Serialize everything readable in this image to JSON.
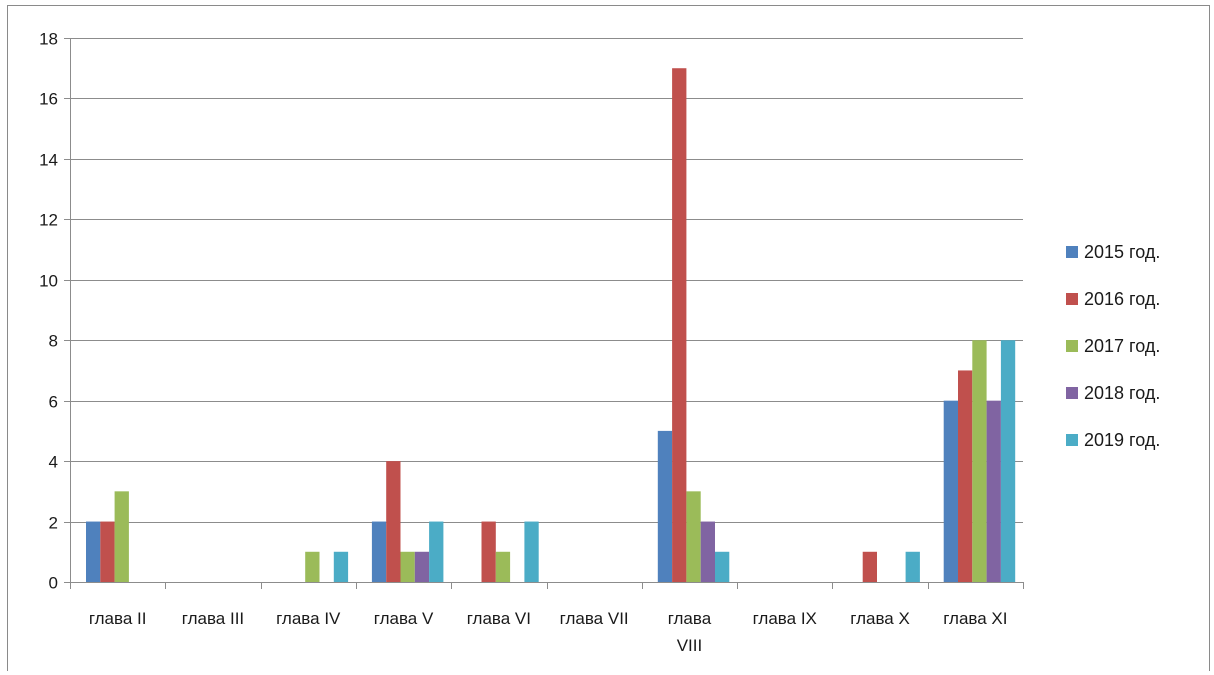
{
  "chart_data": {
    "type": "bar",
    "categories": [
      [
        "глава II"
      ],
      [
        "глава III"
      ],
      [
        "глава IV"
      ],
      [
        "глава V"
      ],
      [
        "глава VI"
      ],
      [
        "глава VII"
      ],
      [
        "глава",
        "VIII"
      ],
      [
        "глава IX"
      ],
      [
        "глава X"
      ],
      [
        "глава XI"
      ]
    ],
    "series": [
      {
        "name": "2015 год.",
        "color": "#4F81BD",
        "values": [
          2,
          0,
          0,
          2,
          0,
          0,
          5,
          0,
          0,
          6
        ]
      },
      {
        "name": "2016 год.",
        "color": "#C0504D",
        "values": [
          2,
          0,
          0,
          4,
          2,
          0,
          17,
          0,
          1,
          7
        ]
      },
      {
        "name": "2017 год.",
        "color": "#9BBB59",
        "values": [
          3,
          0,
          1,
          1,
          1,
          0,
          3,
          0,
          0,
          8
        ]
      },
      {
        "name": "2018 год.",
        "color": "#8064A2",
        "values": [
          0,
          0,
          0,
          1,
          0,
          0,
          2,
          0,
          0,
          6
        ]
      },
      {
        "name": "2019 год.",
        "color": "#4BACC6",
        "values": [
          0,
          0,
          1,
          2,
          2,
          0,
          1,
          0,
          1,
          8
        ]
      }
    ],
    "ylim": [
      0,
      18
    ],
    "yticks": [
      0,
      2,
      4,
      6,
      8,
      10,
      12,
      14,
      16,
      18
    ],
    "grid": true,
    "legend": "right",
    "title": "",
    "xlabel": "",
    "ylabel": ""
  }
}
